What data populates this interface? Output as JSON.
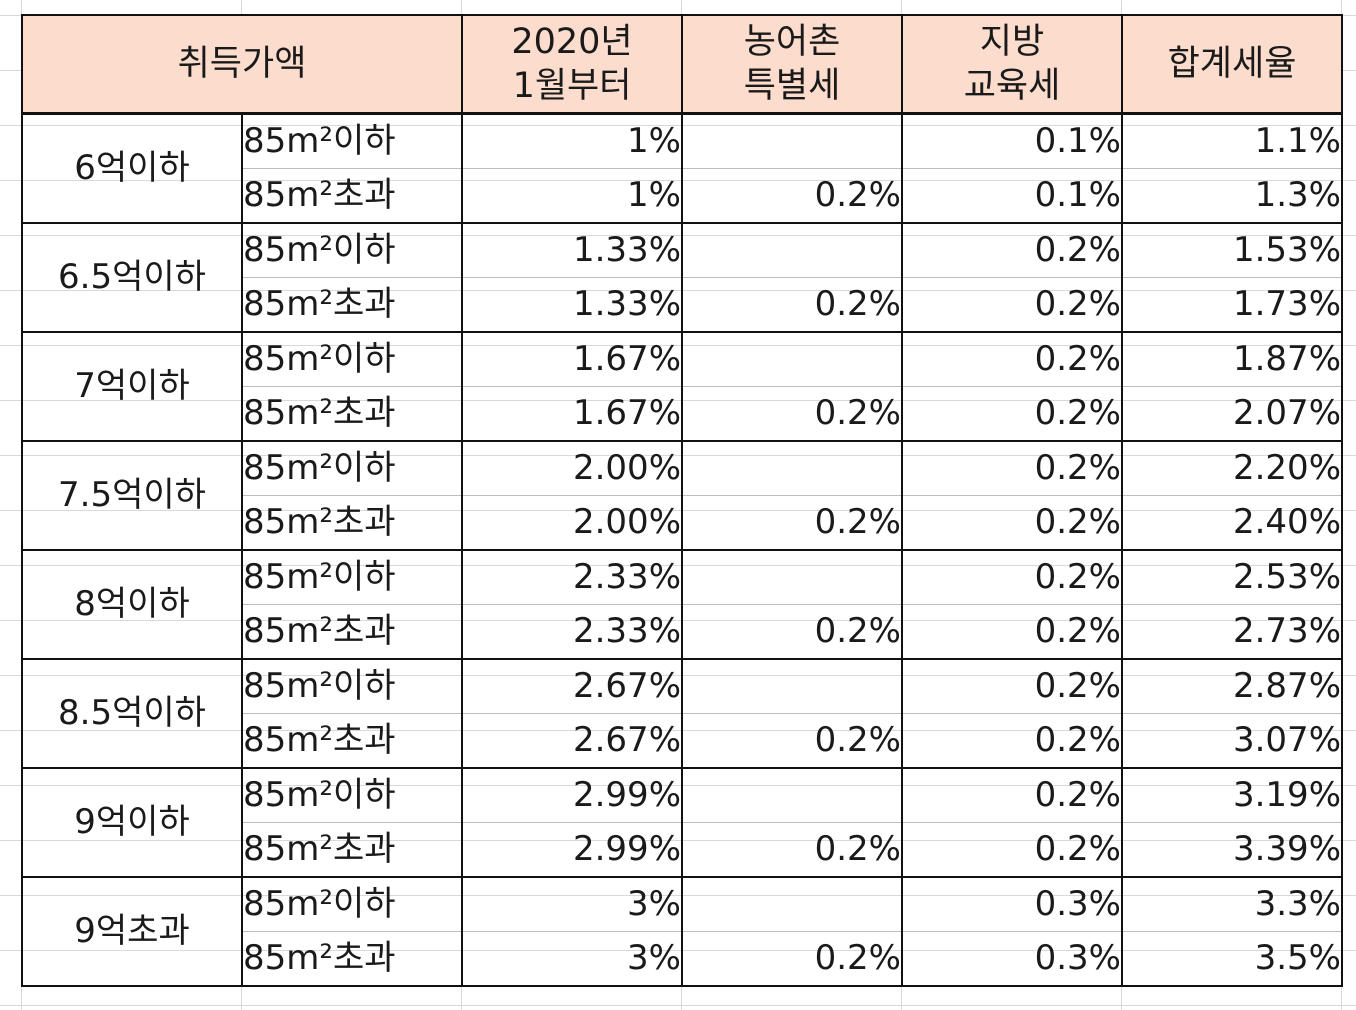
{
  "headers": {
    "price": "취득가액",
    "rate_2020": [
      "2020년",
      "1월부터"
    ],
    "rural": [
      "농어촌",
      "특별세"
    ],
    "local_edu": [
      "지방",
      "교육세"
    ],
    "total": "합계세율"
  },
  "groups": [
    {
      "price": "6억이하",
      "rows": [
        {
          "area": "85m²이하",
          "rate": "1%",
          "rural": "",
          "edu": "0.1%",
          "total": "1.1%"
        },
        {
          "area": "85m²초과",
          "rate": "1%",
          "rural": "0.2%",
          "edu": "0.1%",
          "total": "1.3%"
        }
      ]
    },
    {
      "price": "6.5억이하",
      "rows": [
        {
          "area": "85m²이하",
          "rate": "1.33%",
          "rural": "",
          "edu": "0.2%",
          "total": "1.53%"
        },
        {
          "area": "85m²초과",
          "rate": "1.33%",
          "rural": "0.2%",
          "edu": "0.2%",
          "total": "1.73%"
        }
      ]
    },
    {
      "price": "7억이하",
      "rows": [
        {
          "area": "85m²이하",
          "rate": "1.67%",
          "rural": "",
          "edu": "0.2%",
          "total": "1.87%"
        },
        {
          "area": "85m²초과",
          "rate": "1.67%",
          "rural": "0.2%",
          "edu": "0.2%",
          "total": "2.07%"
        }
      ]
    },
    {
      "price": "7.5억이하",
      "rows": [
        {
          "area": "85m²이하",
          "rate": "2.00%",
          "rural": "",
          "edu": "0.2%",
          "total": "2.20%"
        },
        {
          "area": "85m²초과",
          "rate": "2.00%",
          "rural": "0.2%",
          "edu": "0.2%",
          "total": "2.40%"
        }
      ]
    },
    {
      "price": "8억이하",
      "rows": [
        {
          "area": "85m²이하",
          "rate": "2.33%",
          "rural": "",
          "edu": "0.2%",
          "total": "2.53%"
        },
        {
          "area": "85m²초과",
          "rate": "2.33%",
          "rural": "0.2%",
          "edu": "0.2%",
          "total": "2.73%"
        }
      ]
    },
    {
      "price": "8.5억이하",
      "rows": [
        {
          "area": "85m²이하",
          "rate": "2.67%",
          "rural": "",
          "edu": "0.2%",
          "total": "2.87%"
        },
        {
          "area": "85m²초과",
          "rate": "2.67%",
          "rural": "0.2%",
          "edu": "0.2%",
          "total": "3.07%"
        }
      ]
    },
    {
      "price": "9억이하",
      "rows": [
        {
          "area": "85m²이하",
          "rate": "2.99%",
          "rural": "",
          "edu": "0.2%",
          "total": "3.19%"
        },
        {
          "area": "85m²초과",
          "rate": "2.99%",
          "rural": "0.2%",
          "edu": "0.2%",
          "total": "3.39%"
        }
      ]
    },
    {
      "price": "9억초과",
      "rows": [
        {
          "area": "85m²이하",
          "rate": "3%",
          "rural": "",
          "edu": "0.3%",
          "total": "3.3%"
        },
        {
          "area": "85m²초과",
          "rate": "3%",
          "rural": "0.2%",
          "edu": "0.3%",
          "total": "3.5%"
        }
      ]
    }
  ]
}
